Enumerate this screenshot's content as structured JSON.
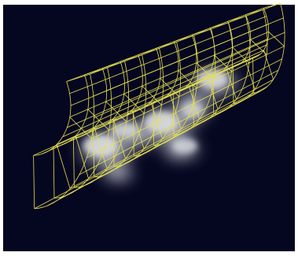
{
  "viewer": {
    "background_color": "#050620",
    "frame_color": "#ffffff",
    "wireframe_color": "#e6e050",
    "volume_color": "#d8dde4"
  }
}
